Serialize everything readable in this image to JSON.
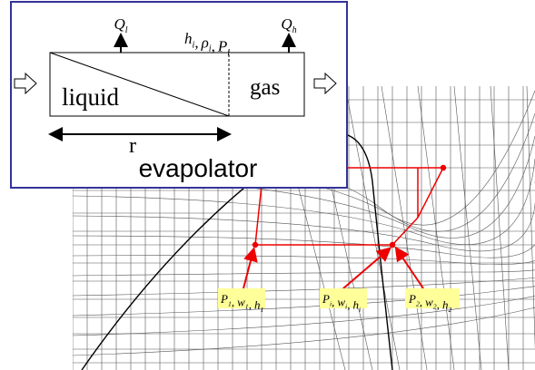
{
  "evaporator_box": {
    "heat_left": {
      "symbol": "Q",
      "sub": "l"
    },
    "heat_right": {
      "symbol": "Q",
      "sub": "h"
    },
    "state_vars": [
      {
        "symbol": "h",
        "sub": "i"
      },
      {
        "symbol": "ρ",
        "sub": "i"
      },
      {
        "symbol": "P",
        "sub": "i"
      }
    ],
    "separator": ",",
    "liquid": "liquid",
    "gas": "gas",
    "length": "r",
    "name": "evapolator"
  },
  "states": [
    [
      {
        "symbol": "P",
        "sub": "1"
      },
      {
        "symbol": "w",
        "sub": "1"
      },
      {
        "symbol": "h",
        "sub": "1"
      }
    ],
    [
      {
        "symbol": "P",
        "sub": "i"
      },
      {
        "symbol": "w",
        "sub": "i"
      },
      {
        "symbol": "h",
        "sub": "i"
      }
    ],
    [
      {
        "symbol": "P",
        "sub": "2"
      },
      {
        "symbol": "w",
        "sub": "2"
      },
      {
        "symbol": "h",
        "sub": "2"
      }
    ]
  ]
}
